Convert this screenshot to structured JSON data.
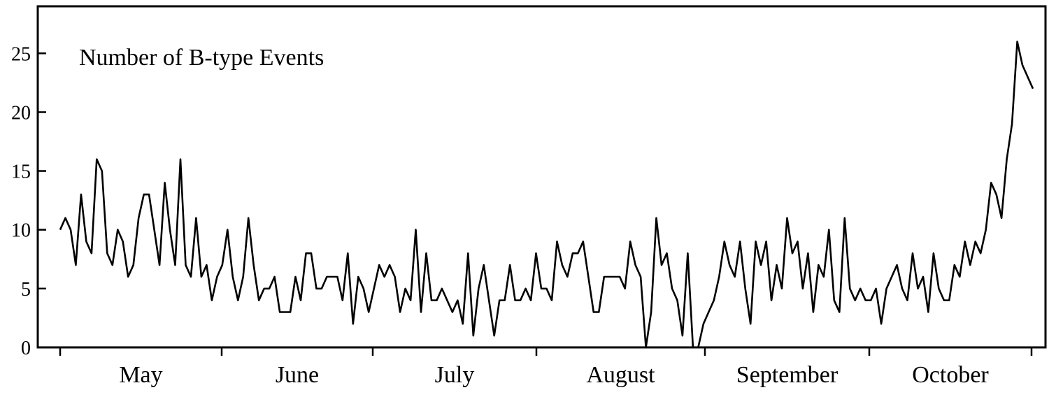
{
  "chart_data": {
    "type": "line",
    "title": "",
    "annotation": "Number of B-type Events",
    "xlabel": "",
    "ylabel": "",
    "ylim": [
      0,
      29
    ],
    "yticks": [
      "0",
      "5",
      "10",
      "15",
      "20",
      "25"
    ],
    "months": [
      "May",
      "June",
      "July",
      "August",
      "September",
      "October"
    ],
    "grid": false,
    "series": [
      {
        "values": [
          10,
          11,
          10,
          7,
          13,
          9,
          8,
          16,
          15,
          8,
          7,
          10,
          9,
          6,
          7,
          11,
          13,
          13,
          10,
          7,
          14,
          10,
          7,
          16,
          7,
          6,
          11,
          6,
          7,
          4,
          6,
          7,
          10,
          6,
          4,
          6,
          11,
          7,
          4,
          5,
          5,
          6,
          3,
          3,
          3,
          6,
          4,
          8,
          8,
          5,
          5,
          6,
          6,
          6,
          4,
          8,
          2,
          6,
          5,
          3,
          5,
          7,
          6,
          7,
          6,
          3,
          5,
          4,
          10,
          3,
          8,
          4,
          4,
          5,
          4,
          3,
          4,
          2,
          8,
          1,
          5,
          7,
          4,
          1,
          4,
          4,
          7,
          4,
          4,
          5,
          4,
          8,
          5,
          5,
          4,
          9,
          7,
          6,
          8,
          8,
          9,
          6,
          3,
          3,
          6,
          6,
          6,
          6,
          5,
          9,
          7,
          6,
          0,
          3,
          11,
          7,
          8,
          5,
          4,
          1,
          8,
          0,
          0,
          2,
          3,
          4,
          6,
          9,
          7,
          6,
          9,
          5,
          2,
          9,
          7,
          9,
          4,
          7,
          5,
          11,
          8,
          9,
          5,
          8,
          3,
          7,
          6,
          10,
          4,
          3,
          11,
          5,
          4,
          5,
          4,
          4,
          5,
          2,
          5,
          6,
          7,
          5,
          4,
          8,
          5,
          6,
          3,
          8,
          5,
          4,
          4,
          7,
          6,
          9,
          7,
          9,
          8,
          10,
          14,
          13,
          11,
          16,
          19,
          26,
          24,
          23,
          22
        ]
      }
    ]
  }
}
